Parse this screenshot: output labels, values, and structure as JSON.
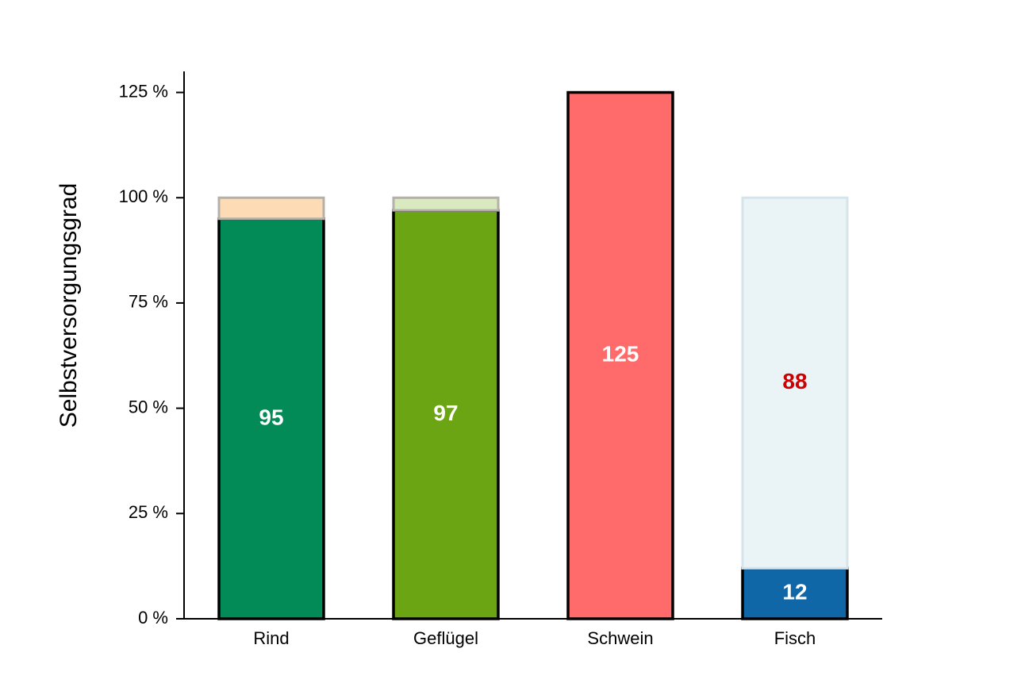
{
  "chart_data": {
    "type": "stacked_bar",
    "y_label": "Selbstversorgungsgrad",
    "categories": [
      "Rind",
      "Geflügel",
      "Schwein",
      "Fisch"
    ],
    "series": [
      {
        "colors": [
          "#028a57",
          "#6ba513",
          "#ff6b6b",
          "#0f67a8"
        ],
        "values": [
          95,
          97,
          125,
          12
        ],
        "label_color": "#ffffff",
        "labeled": [
          true,
          true,
          true,
          true
        ]
      },
      {
        "colors": [
          "#fddcb5",
          "#d9eac0",
          "#ffffff",
          "#eaf4f7"
        ],
        "values": [
          5,
          3,
          null,
          88
        ],
        "label_color": "#cc0000",
        "labeled": [
          false,
          false,
          false,
          true
        ]
      }
    ],
    "ylim": [
      0,
      130
    ],
    "yticks": [
      {
        "value": 0,
        "label": "0 %"
      },
      {
        "value": 25,
        "label": "25 %"
      },
      {
        "value": 50,
        "label": "50 %"
      },
      {
        "value": 75,
        "label": "75 %"
      },
      {
        "value": 100,
        "label": "100 %"
      },
      {
        "value": 125,
        "label": "125 %"
      }
    ],
    "grid": false
  }
}
